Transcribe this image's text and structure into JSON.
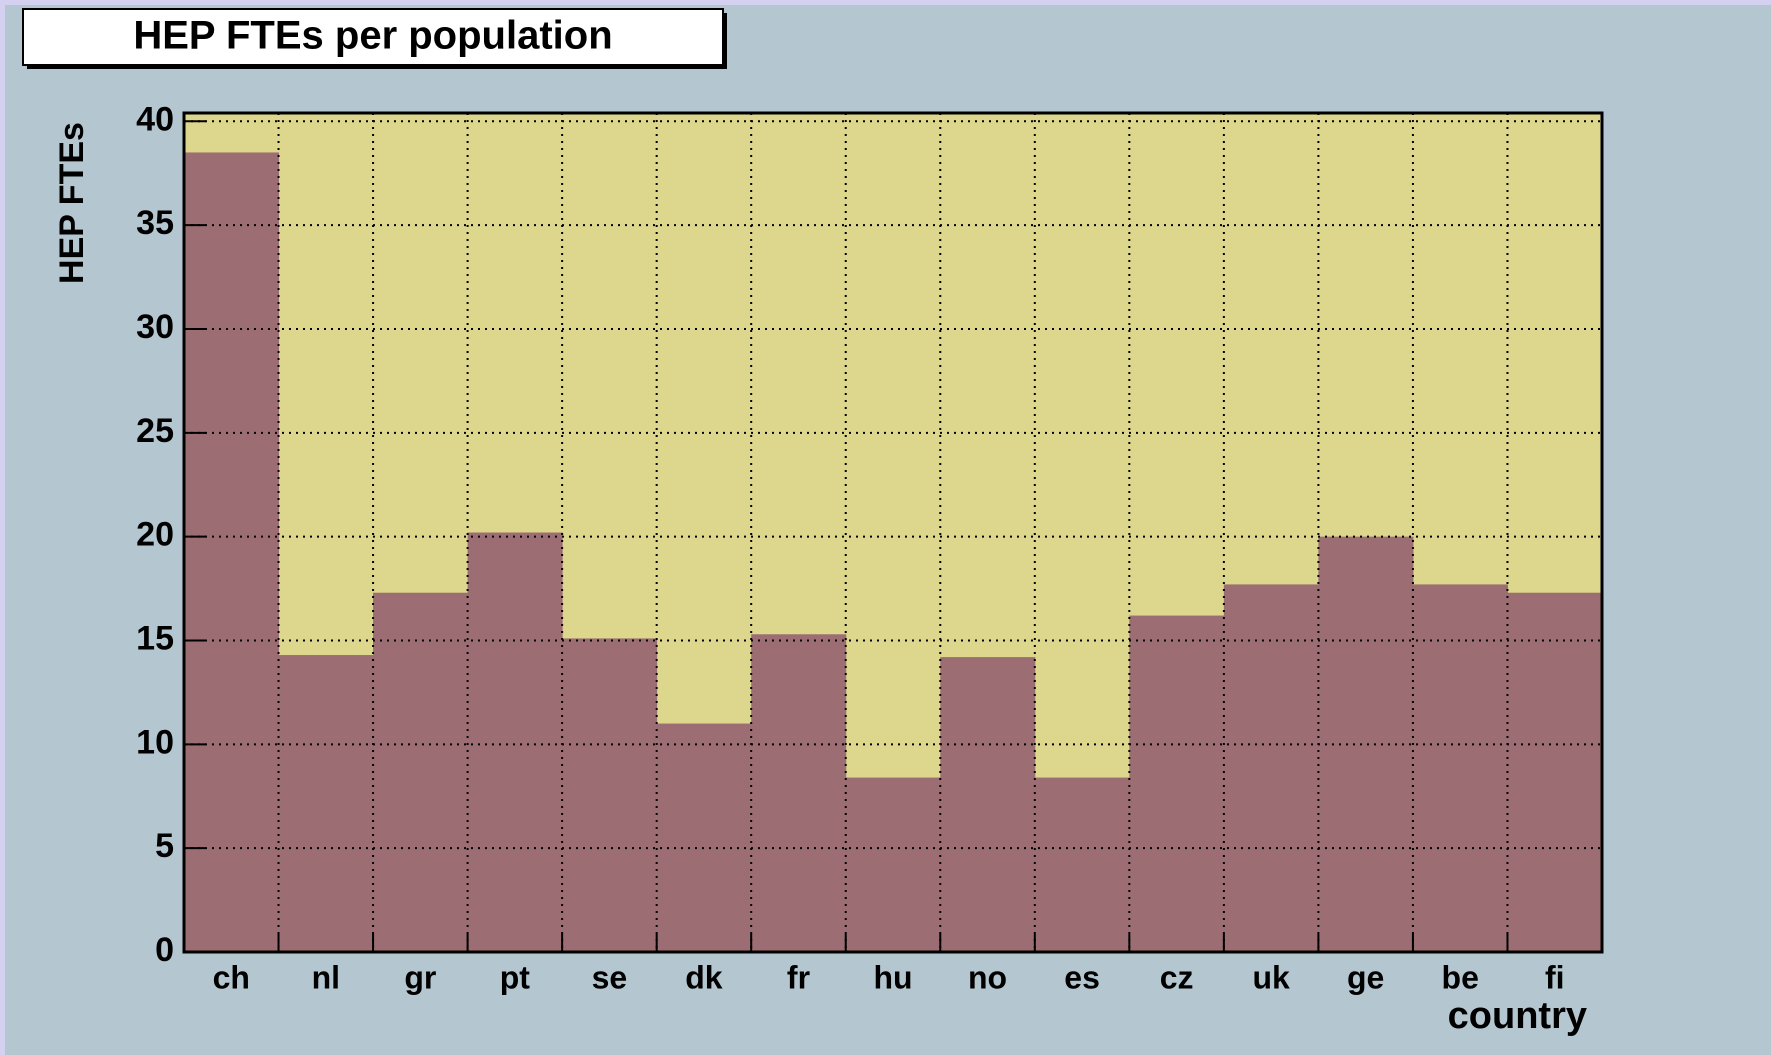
{
  "chart_data": {
    "type": "bar",
    "title": "HEP FTEs per population",
    "y_label": "HEP FTEs",
    "x_label": "country",
    "categories": [
      "ch",
      "nl",
      "gr",
      "pt",
      "se",
      "dk",
      "fr",
      "hu",
      "no",
      "es",
      "cz",
      "uk",
      "ge",
      "be",
      "fi"
    ],
    "values": [
      38.5,
      14.3,
      17.3,
      20.2,
      15.1,
      11.0,
      15.3,
      8.4,
      14.2,
      8.4,
      16.2,
      17.7,
      20.0,
      17.7,
      17.3
    ],
    "color": "#9c6e73",
    "background": "#dcd78c",
    "ylim": [
      0,
      40.4
    ],
    "yticks": [
      0,
      5,
      10,
      15,
      20,
      25,
      30,
      35,
      40
    ],
    "grid": true
  }
}
